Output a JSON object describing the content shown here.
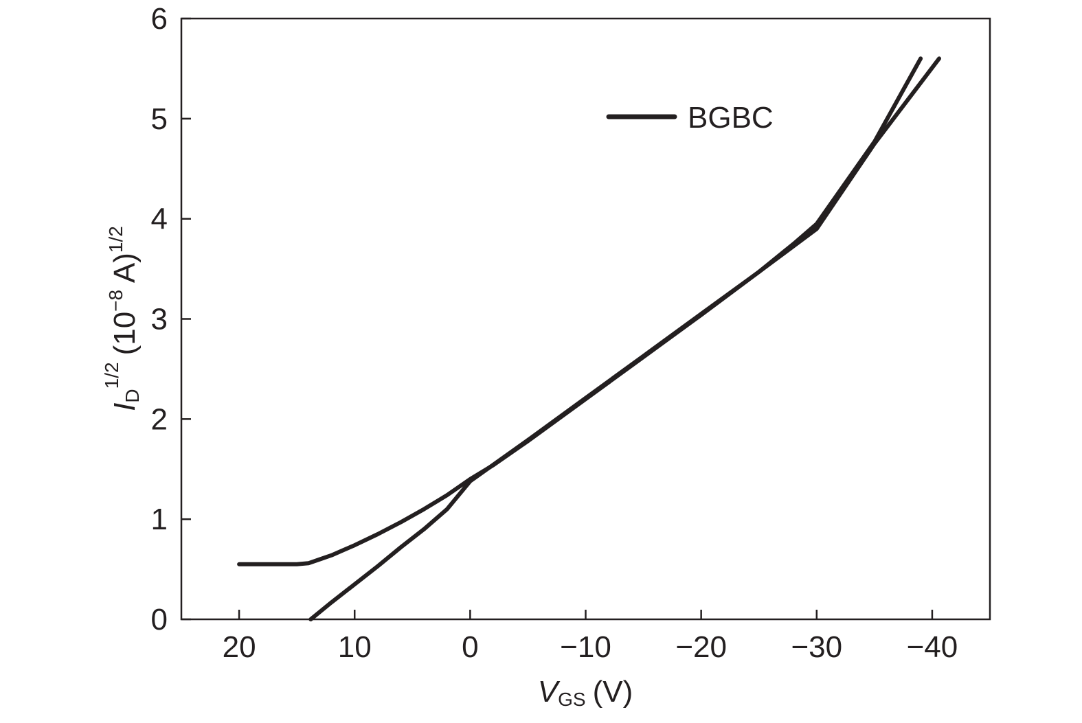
{
  "chart_data": {
    "type": "line",
    "xlabel": {
      "symbol": "V",
      "subscript": "GS",
      "unit": "(V)"
    },
    "ylabel": {
      "symbol": "I",
      "subscript": "D",
      "superscript": "1/2",
      "unit_pre": "(10",
      "unit_exp": "−8",
      "unit_post": " A)",
      "unit_sup": "1/2"
    },
    "xlim": [
      25,
      -45
    ],
    "ylim": [
      0,
      6
    ],
    "x_ticks": [
      20,
      10,
      0,
      -10,
      -20,
      -30,
      -40
    ],
    "x_tick_labels": [
      "20",
      "10",
      "0",
      "−10",
      "−20",
      "−30",
      "−40"
    ],
    "y_ticks": [
      0,
      1,
      2,
      3,
      4,
      5,
      6
    ],
    "y_tick_labels": [
      "0",
      "1",
      "2",
      "3",
      "4",
      "5",
      "6"
    ],
    "grid": false,
    "legend": {
      "position": "top-center",
      "entries": [
        "BGBC"
      ]
    },
    "series": [
      {
        "name": "BGBC",
        "color": "#231f20",
        "x": [
          20,
          18,
          16,
          15,
          14,
          13,
          12,
          11,
          10,
          8,
          6,
          4,
          2,
          0,
          -2,
          -5,
          -10,
          -15,
          -20,
          -25,
          -28,
          -30,
          -35,
          -39
        ],
        "y": [
          0.55,
          0.55,
          0.55,
          0.55,
          0.56,
          0.6,
          0.64,
          0.69,
          0.74,
          0.85,
          0.97,
          1.1,
          1.24,
          1.4,
          1.54,
          1.78,
          2.2,
          2.62,
          3.04,
          3.47,
          3.75,
          3.95,
          4.77,
          5.6
        ]
      },
      {
        "name": "",
        "color": "#231f20",
        "x": [
          13.8,
          12,
          10,
          8,
          6,
          4,
          2,
          0,
          -5,
          -10,
          -15,
          -20,
          -25,
          -30,
          -35,
          -40.6
        ],
        "y": [
          0.0,
          0.17,
          0.35,
          0.53,
          0.72,
          0.9,
          1.1,
          1.38,
          1.79,
          2.21,
          2.63,
          3.05,
          3.47,
          3.9,
          4.75,
          5.6
        ]
      }
    ]
  }
}
